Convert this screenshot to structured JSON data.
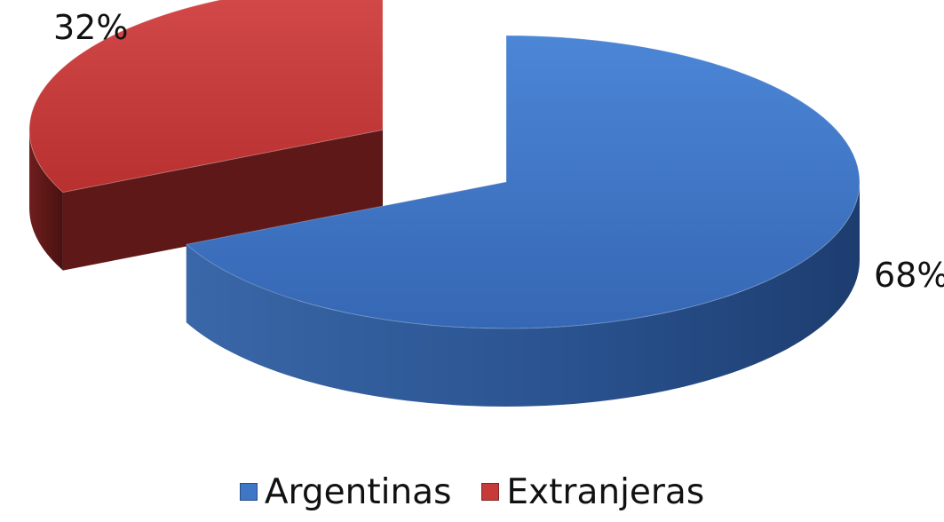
{
  "chart_data": {
    "type": "pie",
    "title": "",
    "categories": [
      "Argentinas",
      "Extranjeras"
    ],
    "values": [
      68,
      32
    ],
    "data_labels": [
      "68%",
      "32%"
    ],
    "colors": [
      "#3f77c7",
      "#c73a3a"
    ],
    "side_colors": [
      "#244c86",
      "#5a1414"
    ],
    "legend": {
      "position": "bottom",
      "entries": [
        "Argentinas",
        "Extranjeras"
      ]
    },
    "style": "3d-exploded"
  }
}
